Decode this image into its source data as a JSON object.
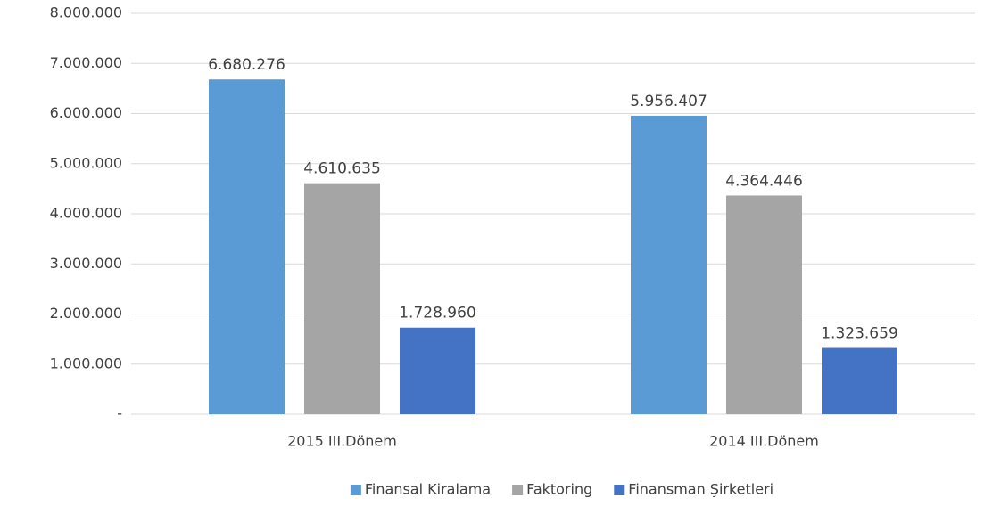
{
  "chart_data": {
    "type": "bar",
    "categories": [
      "2015 III.Dönem",
      "2014 III.Dönem"
    ],
    "series": [
      {
        "name": "Finansal Kiralama",
        "color": "#5b9bd5",
        "values": [
          6680276,
          5956407
        ],
        "value_labels": [
          "6.680.276",
          "5.956.407"
        ]
      },
      {
        "name": "Faktoring",
        "color": "#a5a5a5",
        "values": [
          4610635,
          4364446
        ],
        "value_labels": [
          "4.610.635",
          "4.364.446"
        ]
      },
      {
        "name": "Finansman Şirketleri",
        "color": "#4472c4",
        "values": [
          1728960,
          1323659
        ],
        "value_labels": [
          "1.728.960",
          "1.323.659"
        ]
      }
    ],
    "ylim": [
      0,
      8000000
    ],
    "yticks": [
      {
        "value": 0,
        "label": "-"
      },
      {
        "value": 1000000,
        "label": "1.000.000"
      },
      {
        "value": 2000000,
        "label": "2.000.000"
      },
      {
        "value": 3000000,
        "label": "3.000.000"
      },
      {
        "value": 4000000,
        "label": "4.000.000"
      },
      {
        "value": 5000000,
        "label": "5.000.000"
      },
      {
        "value": 6000000,
        "label": "6.000.000"
      },
      {
        "value": 7000000,
        "label": "7.000.000"
      },
      {
        "value": 8000000,
        "label": "8.000.000"
      }
    ],
    "grid": true,
    "legend": "bottom"
  }
}
